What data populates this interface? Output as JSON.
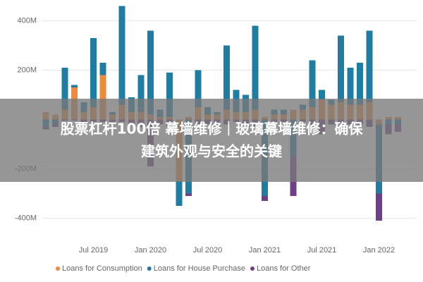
{
  "chart_data": {
    "type": "bar",
    "stacked": true,
    "categories": [
      null,
      null,
      null,
      null,
      null,
      "Jul 2019",
      null,
      null,
      null,
      null,
      null,
      "Jan 2020",
      null,
      null,
      null,
      null,
      null,
      "Jul 2020",
      null,
      null,
      null,
      null,
      null,
      "Jan 2021",
      null,
      null,
      null,
      null,
      null,
      "Jul 2021",
      null,
      null,
      null,
      null,
      null,
      "Jan 2022",
      null,
      null
    ],
    "series": [
      {
        "name": "Loans for Consumption",
        "color": "#ee8a3c",
        "values": [
          30,
          20,
          40,
          130,
          30,
          50,
          180,
          20,
          60,
          30,
          30,
          20,
          10,
          10,
          -250,
          10,
          50,
          20,
          20,
          40,
          30,
          30,
          40,
          10,
          20,
          20,
          40,
          40,
          50,
          80,
          60,
          70,
          60,
          60,
          70,
          -20,
          10,
          10
        ]
      },
      {
        "name": "Loans for House Purchase",
        "color": "#1f7ca3",
        "values": [
          -30,
          -20,
          170,
          10,
          40,
          280,
          50,
          10,
          400,
          60,
          150,
          340,
          30,
          180,
          -100,
          -300,
          150,
          30,
          10,
          260,
          90,
          70,
          340,
          -310,
          20,
          20,
          -150,
          20,
          190,
          40,
          20,
          270,
          150,
          170,
          290,
          -280,
          -20,
          -20
        ]
      },
      {
        "name": "Loans for Other",
        "color": "#6e3f86",
        "values": [
          -10,
          -10,
          -5,
          -5,
          -10,
          -10,
          -10,
          -15,
          -10,
          -20,
          -30,
          -190,
          -20,
          -30,
          0,
          -10,
          -20,
          -20,
          -30,
          -20,
          -10,
          -20,
          -30,
          -20,
          -10,
          -10,
          -160,
          -10,
          -20,
          -60,
          -20,
          -20,
          -20,
          -20,
          -30,
          -110,
          -40,
          -30
        ]
      }
    ],
    "ylim": [
      -430,
      470
    ],
    "yticks": [
      {
        "value": 400,
        "label": "400M"
      },
      {
        "value": 200,
        "label": "200M"
      },
      {
        "value": -200,
        "label": "-200M"
      },
      {
        "value": -400,
        "label": "-400M"
      }
    ],
    "grid": true,
    "legend": "bottom",
    "overlay_text": [
      "股票杠杆100倍 幕墙维修｜玻璃幕墙维修：确保",
      "建筑外观与安全的关键"
    ]
  }
}
